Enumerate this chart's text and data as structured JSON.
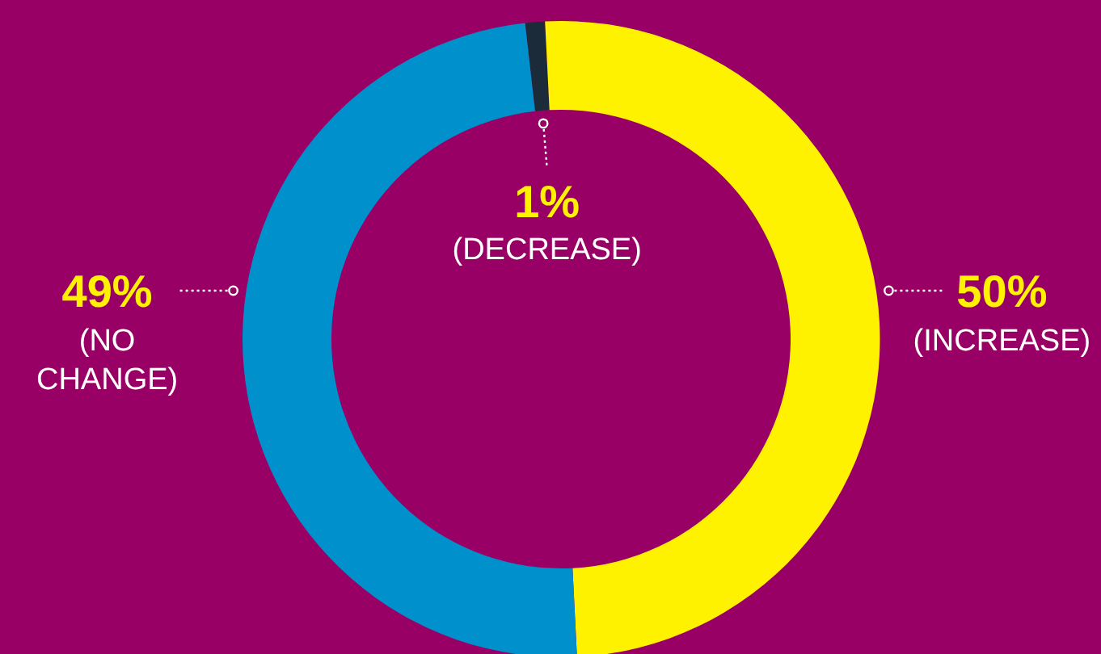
{
  "chart_data": {
    "type": "donut",
    "categories": [
      "(DECREASE)",
      "(INCREASE)",
      "(NO CHANGE)"
    ],
    "values": [
      1,
      50,
      49
    ],
    "colors": [
      "#1c2b3a",
      "#fff200",
      "#0091cc"
    ],
    "value_labels": [
      "1%",
      "50%",
      "49%"
    ]
  }
}
